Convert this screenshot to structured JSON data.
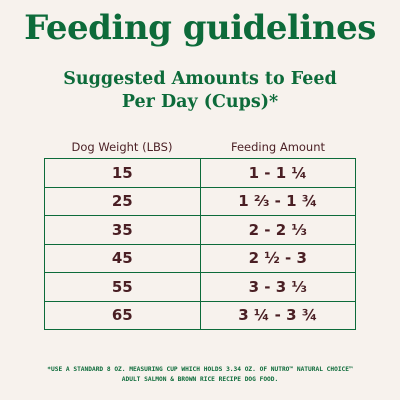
{
  "title": "Feeding guidelines",
  "subtitle": {
    "line1": "Suggested Amounts to Feed",
    "line2": "Per Day (Cups)*"
  },
  "table": {
    "headers": [
      "Dog Weight (LBS)",
      "Feeding Amount"
    ],
    "rows": [
      {
        "weight": "15",
        "amount": "1 - 1 ¼"
      },
      {
        "weight": "25",
        "amount": "1 ⅔ - 1 ¾"
      },
      {
        "weight": "35",
        "amount": "2 - 2 ⅓"
      },
      {
        "weight": "45",
        "amount": "2 ½ - 3"
      },
      {
        "weight": "55",
        "amount": "3 - 3 ⅓"
      },
      {
        "weight": "65",
        "amount": "3 ¼ - 3 ¾"
      }
    ]
  },
  "footnote": {
    "line1": "*Use a standard 8 oz. measuring cup which holds 3.34 oz. of Nutro™ Natural Choice™",
    "line2": "Adult Salmon & Brown Rice Recipe Dog Food."
  },
  "colors": {
    "background": "#f7f2ed",
    "brand_green": "#0d6b3a",
    "text_maroon": "#4a1f24"
  }
}
